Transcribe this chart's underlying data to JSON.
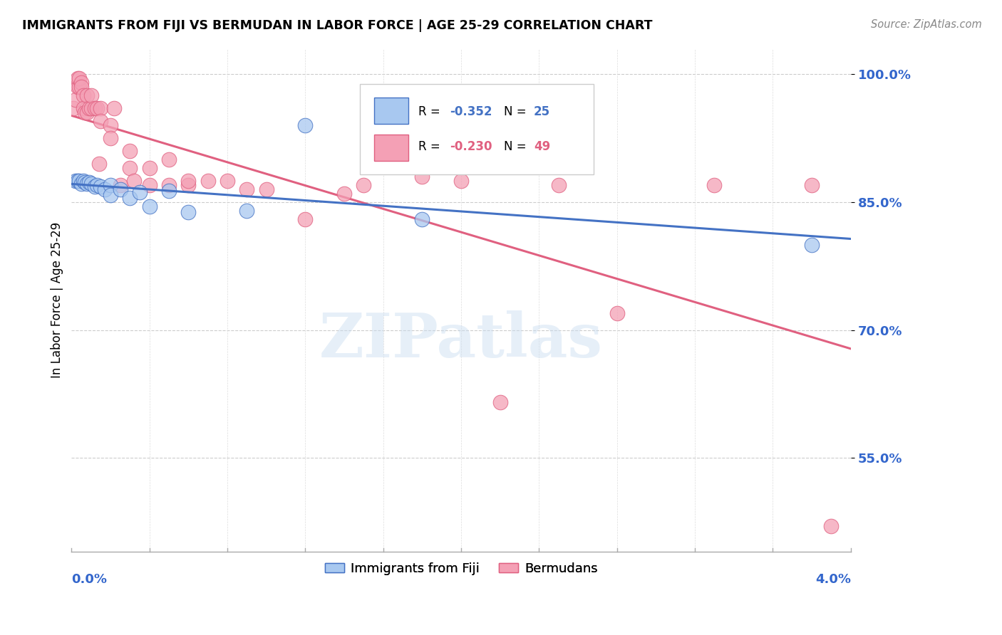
{
  "title": "IMMIGRANTS FROM FIJI VS BERMUDAN IN LABOR FORCE | AGE 25-29 CORRELATION CHART",
  "source": "Source: ZipAtlas.com",
  "ylabel": "In Labor Force | Age 25-29",
  "blue_color": "#A8C8F0",
  "pink_color": "#F4A0B5",
  "blue_line_color": "#4472C4",
  "pink_line_color": "#E06080",
  "watermark": "ZIPatlas",
  "fiji_x": [
    0.0002,
    0.0003,
    0.0004,
    0.0005,
    0.0006,
    0.0007,
    0.0008,
    0.0009,
    0.001,
    0.0012,
    0.0013,
    0.0015,
    0.0017,
    0.002,
    0.002,
    0.0025,
    0.003,
    0.0035,
    0.004,
    0.005,
    0.006,
    0.009,
    0.012,
    0.018,
    0.038
  ],
  "fiji_y": [
    0.875,
    0.875,
    0.875,
    0.872,
    0.875,
    0.873,
    0.872,
    0.873,
    0.872,
    0.868,
    0.87,
    0.868,
    0.865,
    0.87,
    0.858,
    0.865,
    0.855,
    0.862,
    0.845,
    0.863,
    0.838,
    0.84,
    0.94,
    0.83,
    0.8
  ],
  "bermuda_x": [
    0.0001,
    0.0002,
    0.0003,
    0.0003,
    0.0004,
    0.0004,
    0.0005,
    0.0005,
    0.0006,
    0.0006,
    0.0007,
    0.0008,
    0.0008,
    0.0009,
    0.001,
    0.001,
    0.0012,
    0.0013,
    0.0014,
    0.0015,
    0.0015,
    0.002,
    0.002,
    0.0022,
    0.0025,
    0.003,
    0.003,
    0.0032,
    0.004,
    0.004,
    0.005,
    0.005,
    0.006,
    0.006,
    0.007,
    0.008,
    0.009,
    0.01,
    0.012,
    0.014,
    0.015,
    0.018,
    0.02,
    0.022,
    0.025,
    0.028,
    0.033,
    0.038,
    0.039
  ],
  "bermuda_y": [
    0.96,
    0.97,
    0.985,
    0.995,
    0.985,
    0.995,
    0.99,
    0.985,
    0.975,
    0.96,
    0.955,
    0.975,
    0.955,
    0.96,
    0.96,
    0.975,
    0.96,
    0.96,
    0.895,
    0.96,
    0.945,
    0.94,
    0.925,
    0.96,
    0.87,
    0.91,
    0.89,
    0.875,
    0.89,
    0.87,
    0.9,
    0.87,
    0.87,
    0.875,
    0.875,
    0.875,
    0.865,
    0.865,
    0.83,
    0.86,
    0.87,
    0.88,
    0.875,
    0.615,
    0.87,
    0.72,
    0.87,
    0.87,
    0.47
  ],
  "xlim": [
    0.0,
    0.04
  ],
  "ylim": [
    0.44,
    1.03
  ],
  "yticks": [
    0.55,
    0.7,
    0.85,
    1.0
  ],
  "ytick_labels": [
    "55.0%",
    "70.0%",
    "85.0%",
    "100.0%"
  ]
}
